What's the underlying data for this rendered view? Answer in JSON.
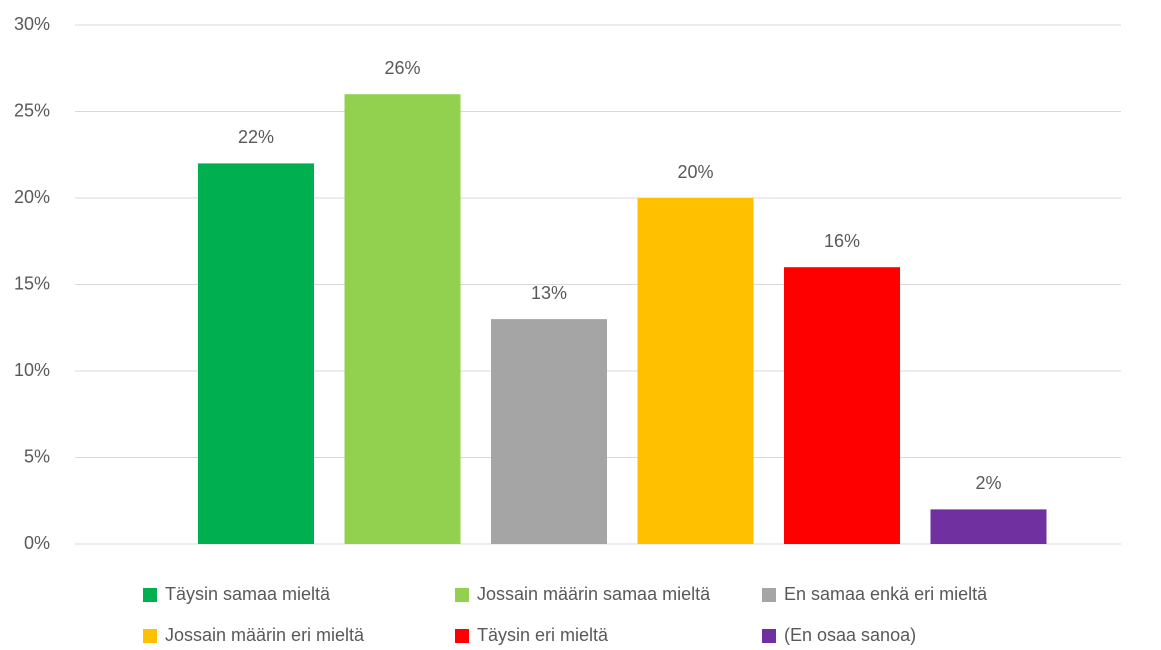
{
  "chart_data": {
    "type": "bar",
    "categories": [
      null
    ],
    "series": [
      {
        "name": "Täysin samaa mieltä",
        "color": "#00b050",
        "values": [
          22
        ],
        "value_labels": [
          "22%"
        ]
      },
      {
        "name": "Jossain määrin samaa mieltä",
        "color": "#92d050",
        "values": [
          26
        ],
        "value_labels": [
          "26%"
        ]
      },
      {
        "name": "En samaa enkä eri mieltä",
        "color": "#a5a5a5",
        "values": [
          13
        ],
        "value_labels": [
          "13%"
        ]
      },
      {
        "name": "Jossain määrin eri mieltä",
        "color": "#ffc000",
        "values": [
          20
        ],
        "value_labels": [
          "20%"
        ]
      },
      {
        "name": "Täysin eri mieltä",
        "color": "#ff0000",
        "values": [
          16
        ],
        "value_labels": [
          "16%"
        ]
      },
      {
        "name": "(En osaa sanoa)",
        "color": "#7030a0",
        "values": [
          2
        ],
        "value_labels": [
          "2%"
        ]
      }
    ],
    "ylim": [
      0,
      30
    ],
    "yticks": [
      {
        "value": 0,
        "label": "0%"
      },
      {
        "value": 5,
        "label": "5%"
      },
      {
        "value": 10,
        "label": "10%"
      },
      {
        "value": 15,
        "label": "15%"
      },
      {
        "value": 20,
        "label": "20%"
      },
      {
        "value": 25,
        "label": "25%"
      },
      {
        "value": 30,
        "label": "30%"
      }
    ],
    "grid": true
  }
}
